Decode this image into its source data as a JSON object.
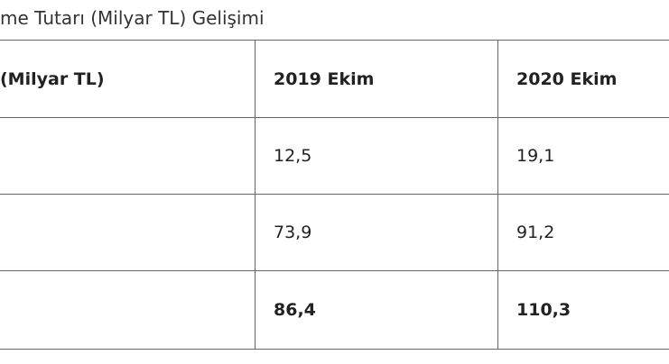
{
  "title": "me Tutarı (Milyar TL) Gelişimi",
  "table": {
    "header": [
      "(Milyar TL)",
      "2019 Ekim",
      "2020 Ekim"
    ],
    "rows": [
      [
        "12,5",
        "19,1"
      ],
      [
        "73,9",
        "91,2"
      ],
      [
        "86,4",
        "110,3"
      ]
    ]
  }
}
